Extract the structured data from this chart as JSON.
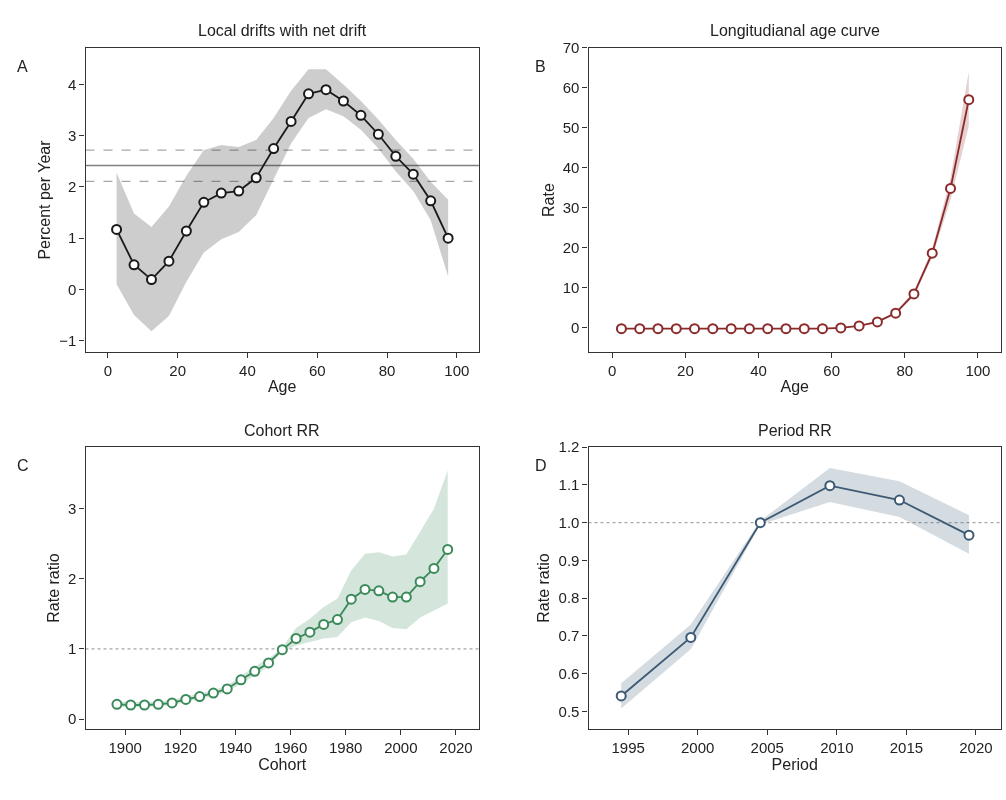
{
  "chart_data": [
    {
      "type": "line",
      "title": "Local drifts with net drift",
      "xlabel": "Age",
      "ylabel": "Percent per Year",
      "annotations": [
        "A"
      ],
      "marker": "circle",
      "x": [
        2.5,
        7.5,
        12.5,
        17.5,
        22.5,
        27.5,
        32.5,
        37.5,
        42.5,
        47.5,
        52.5,
        57.5,
        62.5,
        67.5,
        72.5,
        77.5,
        82.5,
        87.5,
        92.5,
        97.5
      ],
      "series": [
        {
          "color": "#1a1a1a",
          "values": [
            1.17,
            0.48,
            0.19,
            0.55,
            1.14,
            1.7,
            1.88,
            1.92,
            2.18,
            2.75,
            3.28,
            3.82,
            3.9,
            3.68,
            3.4,
            3.03,
            2.6,
            2.25,
            1.73,
            1.0
          ],
          "lower": [
            0.1,
            -0.5,
            -0.82,
            -0.52,
            0.15,
            0.72,
            0.98,
            1.12,
            1.45,
            2.15,
            2.85,
            3.35,
            3.52,
            3.38,
            3.12,
            2.75,
            2.3,
            1.92,
            1.35,
            0.25
          ],
          "upper": [
            2.28,
            1.48,
            1.22,
            1.62,
            2.22,
            2.72,
            2.82,
            2.78,
            2.92,
            3.35,
            3.88,
            4.3,
            4.3,
            4.0,
            3.68,
            3.32,
            2.92,
            2.55,
            2.1,
            1.75
          ]
        }
      ],
      "ref_lines": [
        {
          "axis": "y",
          "value": 2.42,
          "color": "#808080",
          "line_style": "solid"
        },
        {
          "axis": "y",
          "value": 2.72,
          "color": "#a6a6a6",
          "line_style": "dashed"
        },
        {
          "axis": "y",
          "value": 2.11,
          "color": "#a6a6a6",
          "line_style": "dashed"
        }
      ],
      "xlim": [
        -6.4,
        106.3
      ],
      "xticks": [
        0,
        20,
        40,
        60,
        80,
        100
      ],
      "ylim": [
        -1.23,
        4.72
      ],
      "yticks": [
        {
          "value": -1,
          "label": "−1"
        },
        0,
        1,
        2,
        3,
        4
      ]
    },
    {
      "type": "line",
      "title": "Longitudianal age curve",
      "xlabel": "Age",
      "ylabel": "Rate",
      "annotations": [
        "B"
      ],
      "marker": "circle",
      "x": [
        2.5,
        7.5,
        12.5,
        17.5,
        22.5,
        27.5,
        32.5,
        37.5,
        42.5,
        47.5,
        52.5,
        57.5,
        62.5,
        67.5,
        72.5,
        77.5,
        82.5,
        87.5,
        92.5,
        97.5
      ],
      "series": [
        {
          "color": "#8b2a2a",
          "values": [
            -0.3,
            -0.3,
            -0.3,
            -0.3,
            -0.3,
            -0.3,
            -0.3,
            -0.3,
            -0.3,
            -0.3,
            -0.3,
            -0.3,
            -0.1,
            0.4,
            1.4,
            3.6,
            8.4,
            18.6,
            34.8,
            57.0
          ],
          "lower": [
            -0.4,
            -0.4,
            -0.4,
            -0.4,
            -0.4,
            -0.4,
            -0.4,
            -0.4,
            -0.4,
            -0.4,
            -0.4,
            -0.4,
            -0.2,
            0.3,
            1.2,
            3.2,
            7.8,
            17.5,
            32.0,
            50.5
          ],
          "upper": [
            -0.2,
            -0.2,
            -0.2,
            -0.2,
            -0.2,
            -0.2,
            -0.2,
            -0.2,
            -0.2,
            -0.2,
            -0.2,
            -0.2,
            0.0,
            0.5,
            1.6,
            4.0,
            9.0,
            19.7,
            37.5,
            64.0
          ]
        }
      ],
      "xlim": [
        -6.5,
        106.3
      ],
      "xticks": [
        0,
        20,
        40,
        60,
        80,
        100
      ],
      "ylim": [
        -6.2,
        70
      ],
      "yticks": [
        0,
        10,
        20,
        30,
        40,
        50,
        60,
        70
      ]
    },
    {
      "type": "line",
      "title": "Cohort RR",
      "xlabel": "Cohort",
      "ylabel": "Rate ratio",
      "annotations": [
        "C"
      ],
      "marker": "circle",
      "x": [
        1897,
        1902,
        1907,
        1912,
        1917,
        1922,
        1927,
        1932,
        1937,
        1942,
        1947,
        1952,
        1957,
        1962,
        1967,
        1972,
        1977,
        1982,
        1987,
        1992,
        1997,
        2002,
        2007,
        2012,
        2017
      ],
      "series": [
        {
          "color": "#3a8a5a",
          "values": [
            0.21,
            0.2,
            0.2,
            0.21,
            0.23,
            0.28,
            0.32,
            0.37,
            0.43,
            0.56,
            0.68,
            0.8,
            0.99,
            1.15,
            1.24,
            1.35,
            1.42,
            1.71,
            1.85,
            1.83,
            1.74,
            1.74,
            1.96,
            2.15,
            2.42
          ],
          "lower": [
            0.17,
            0.17,
            0.17,
            0.18,
            0.2,
            0.25,
            0.29,
            0.33,
            0.39,
            0.5,
            0.62,
            0.75,
            0.96,
            1.05,
            1.1,
            1.15,
            1.17,
            1.38,
            1.45,
            1.4,
            1.3,
            1.28,
            1.45,
            1.55,
            1.65
          ],
          "upper": [
            0.25,
            0.24,
            0.24,
            0.25,
            0.27,
            0.32,
            0.36,
            0.41,
            0.48,
            0.62,
            0.75,
            0.86,
            1.02,
            1.3,
            1.43,
            1.6,
            1.72,
            2.12,
            2.36,
            2.38,
            2.32,
            2.35,
            2.68,
            3.0,
            3.55
          ]
        }
      ],
      "ref_lines": [
        {
          "axis": "y",
          "value": 1,
          "color": "#a6a6a6",
          "line_style": "dotted"
        }
      ],
      "xlim": [
        1885.6,
        2028.3
      ],
      "xticks": [
        1900,
        1920,
        1940,
        1960,
        1980,
        2000,
        2020
      ],
      "ylim": [
        -0.14,
        3.88
      ],
      "yticks": [
        0,
        1,
        2,
        3
      ]
    },
    {
      "type": "line",
      "title": "Period RR",
      "xlabel": "Period",
      "ylabel": "Rate ratio",
      "annotations": [
        "D"
      ],
      "marker": "circle",
      "x": [
        1994.5,
        1999.5,
        2004.5,
        2009.5,
        2014.5,
        2019.5
      ],
      "series": [
        {
          "color": "#3d5a75",
          "values": [
            0.541,
            0.696,
            1.0,
            1.098,
            1.06,
            0.967
          ],
          "lower": [
            0.508,
            0.665,
            0.995,
            1.055,
            1.015,
            0.918
          ],
          "upper": [
            0.575,
            0.73,
            1.005,
            1.145,
            1.11,
            1.02
          ]
        }
      ],
      "ref_lines": [
        {
          "axis": "y",
          "value": 1,
          "color": "#a6a6a6",
          "line_style": "dotted"
        }
      ],
      "xlim": [
        1992.15,
        2021.8
      ],
      "xticks": [
        1995,
        2000,
        2005,
        2010,
        2015,
        2020
      ],
      "ylim": [
        0.454,
        1.2
      ],
      "yticks": [
        0.5,
        0.6,
        0.7,
        0.8,
        0.9,
        {
          "value": 1.0,
          "label": "1.0"
        },
        1.1,
        1.2
      ]
    }
  ]
}
